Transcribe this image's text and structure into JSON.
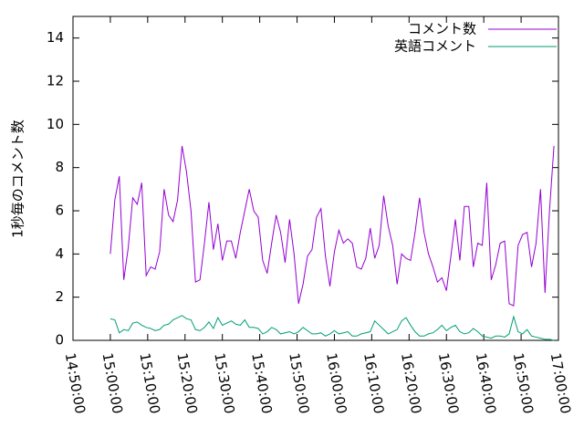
{
  "chart_data": {
    "type": "line",
    "ylabel": "1秒毎のコメント数",
    "xlim": [
      "14:50:00",
      "17:00:00"
    ],
    "xticks": [
      "14:50:00",
      "15:00:00",
      "15:10:00",
      "15:20:00",
      "15:30:00",
      "15:40:00",
      "15:50:00",
      "16:00:00",
      "16:10:00",
      "16:20:00",
      "16:30:00",
      "16:40:00",
      "16:50:00",
      "17:00:00"
    ],
    "ylim": [
      0,
      15
    ],
    "yticks": [
      0,
      2,
      4,
      6,
      8,
      10,
      12,
      14
    ],
    "legend": "top-right",
    "x": [
      "15:00:00",
      "15:01:12",
      "15:02:24",
      "15:03:36",
      "15:04:48",
      "15:06:00",
      "15:07:12",
      "15:08:24",
      "15:09:36",
      "15:10:48",
      "15:12:00",
      "15:13:12",
      "15:14:24",
      "15:15:36",
      "15:16:48",
      "15:18:00",
      "15:19:12",
      "15:20:24",
      "15:21:36",
      "15:22:48",
      "15:24:00",
      "15:25:12",
      "15:26:24",
      "15:27:36",
      "15:28:48",
      "15:30:00",
      "15:31:12",
      "15:32:24",
      "15:33:36",
      "15:34:48",
      "15:36:00",
      "15:37:12",
      "15:38:24",
      "15:39:36",
      "15:40:48",
      "15:42:00",
      "15:43:12",
      "15:44:24",
      "15:45:36",
      "15:46:48",
      "15:48:00",
      "15:49:12",
      "15:50:24",
      "15:51:36",
      "15:52:48",
      "15:54:00",
      "15:55:12",
      "15:56:24",
      "15:57:36",
      "15:58:48",
      "16:00:00",
      "16:01:12",
      "16:02:24",
      "16:03:36",
      "16:04:48",
      "16:06:00",
      "16:07:12",
      "16:08:24",
      "16:09:36",
      "16:10:48",
      "16:12:00",
      "16:13:12",
      "16:14:24",
      "16:15:36",
      "16:16:48",
      "16:18:00",
      "16:19:12",
      "16:20:24",
      "16:21:36",
      "16:22:48",
      "16:24:00",
      "16:25:12",
      "16:26:24",
      "16:27:36",
      "16:28:48",
      "16:30:00",
      "16:31:12",
      "16:32:24",
      "16:33:36",
      "16:34:48",
      "16:36:00",
      "16:37:12",
      "16:38:24",
      "16:39:36",
      "16:40:48",
      "16:42:00",
      "16:43:12",
      "16:44:24",
      "16:45:36",
      "16:46:48",
      "16:48:00",
      "16:49:12",
      "16:50:24",
      "16:51:36",
      "16:52:48",
      "16:54:00",
      "16:55:12",
      "16:56:24",
      "16:57:36",
      "16:58:48"
    ],
    "series": [
      {
        "name": "コメント数",
        "color": "#9400d3",
        "values": [
          4.0,
          6.5,
          7.6,
          2.8,
          4.3,
          6.6,
          6.3,
          7.3,
          3.0,
          3.4,
          3.3,
          4.1,
          7.0,
          5.8,
          5.5,
          6.5,
          9.0,
          7.8,
          6.0,
          2.7,
          2.8,
          4.5,
          6.4,
          4.2,
          5.4,
          3.7,
          4.6,
          4.6,
          3.8,
          5.0,
          6.0,
          7.0,
          6.0,
          5.7,
          3.7,
          3.1,
          4.5,
          5.8,
          5.0,
          3.6,
          5.6,
          4.0,
          1.7,
          2.6,
          3.9,
          4.2,
          5.7,
          6.1,
          3.9,
          2.5,
          4.1,
          5.1,
          4.5,
          4.7,
          4.5,
          3.4,
          3.3,
          3.8,
          5.2,
          3.8,
          4.4,
          6.7,
          5.3,
          4.4,
          2.6,
          4.0,
          3.8,
          3.7,
          5.0,
          6.6,
          5.0,
          4.0,
          3.4,
          2.7,
          2.9,
          2.3,
          3.9,
          5.6,
          3.7,
          6.2,
          6.2,
          3.4,
          4.5,
          4.4,
          7.3,
          2.8,
          3.5,
          4.5,
          4.6,
          1.7,
          1.6,
          4.4,
          4.9,
          5.0,
          3.4,
          4.5,
          7.0,
          2.2,
          6.0,
          9.0
        ]
      },
      {
        "name": "英語コメント",
        "color": "#009e73",
        "values": [
          1.0,
          0.95,
          0.35,
          0.5,
          0.45,
          0.8,
          0.85,
          0.7,
          0.6,
          0.55,
          0.45,
          0.5,
          0.7,
          0.75,
          0.95,
          1.05,
          1.15,
          1.0,
          0.95,
          0.5,
          0.45,
          0.6,
          0.85,
          0.55,
          1.05,
          0.7,
          0.8,
          0.9,
          0.75,
          0.7,
          0.95,
          0.6,
          0.6,
          0.55,
          0.3,
          0.4,
          0.6,
          0.5,
          0.3,
          0.35,
          0.4,
          0.3,
          0.4,
          0.6,
          0.45,
          0.3,
          0.3,
          0.35,
          0.2,
          0.3,
          0.45,
          0.3,
          0.35,
          0.4,
          0.2,
          0.2,
          0.3,
          0.35,
          0.4,
          0.9,
          0.7,
          0.5,
          0.3,
          0.4,
          0.5,
          0.9,
          1.05,
          0.7,
          0.4,
          0.2,
          0.2,
          0.3,
          0.35,
          0.5,
          0.7,
          0.45,
          0.6,
          0.7,
          0.4,
          0.3,
          0.35,
          0.55,
          0.4,
          0.2,
          0.15,
          0.1,
          0.2,
          0.2,
          0.15,
          0.3,
          1.1,
          0.4,
          0.3,
          0.5,
          0.2,
          0.15,
          0.1,
          0.05,
          0.05,
          0.0
        ]
      }
    ]
  }
}
